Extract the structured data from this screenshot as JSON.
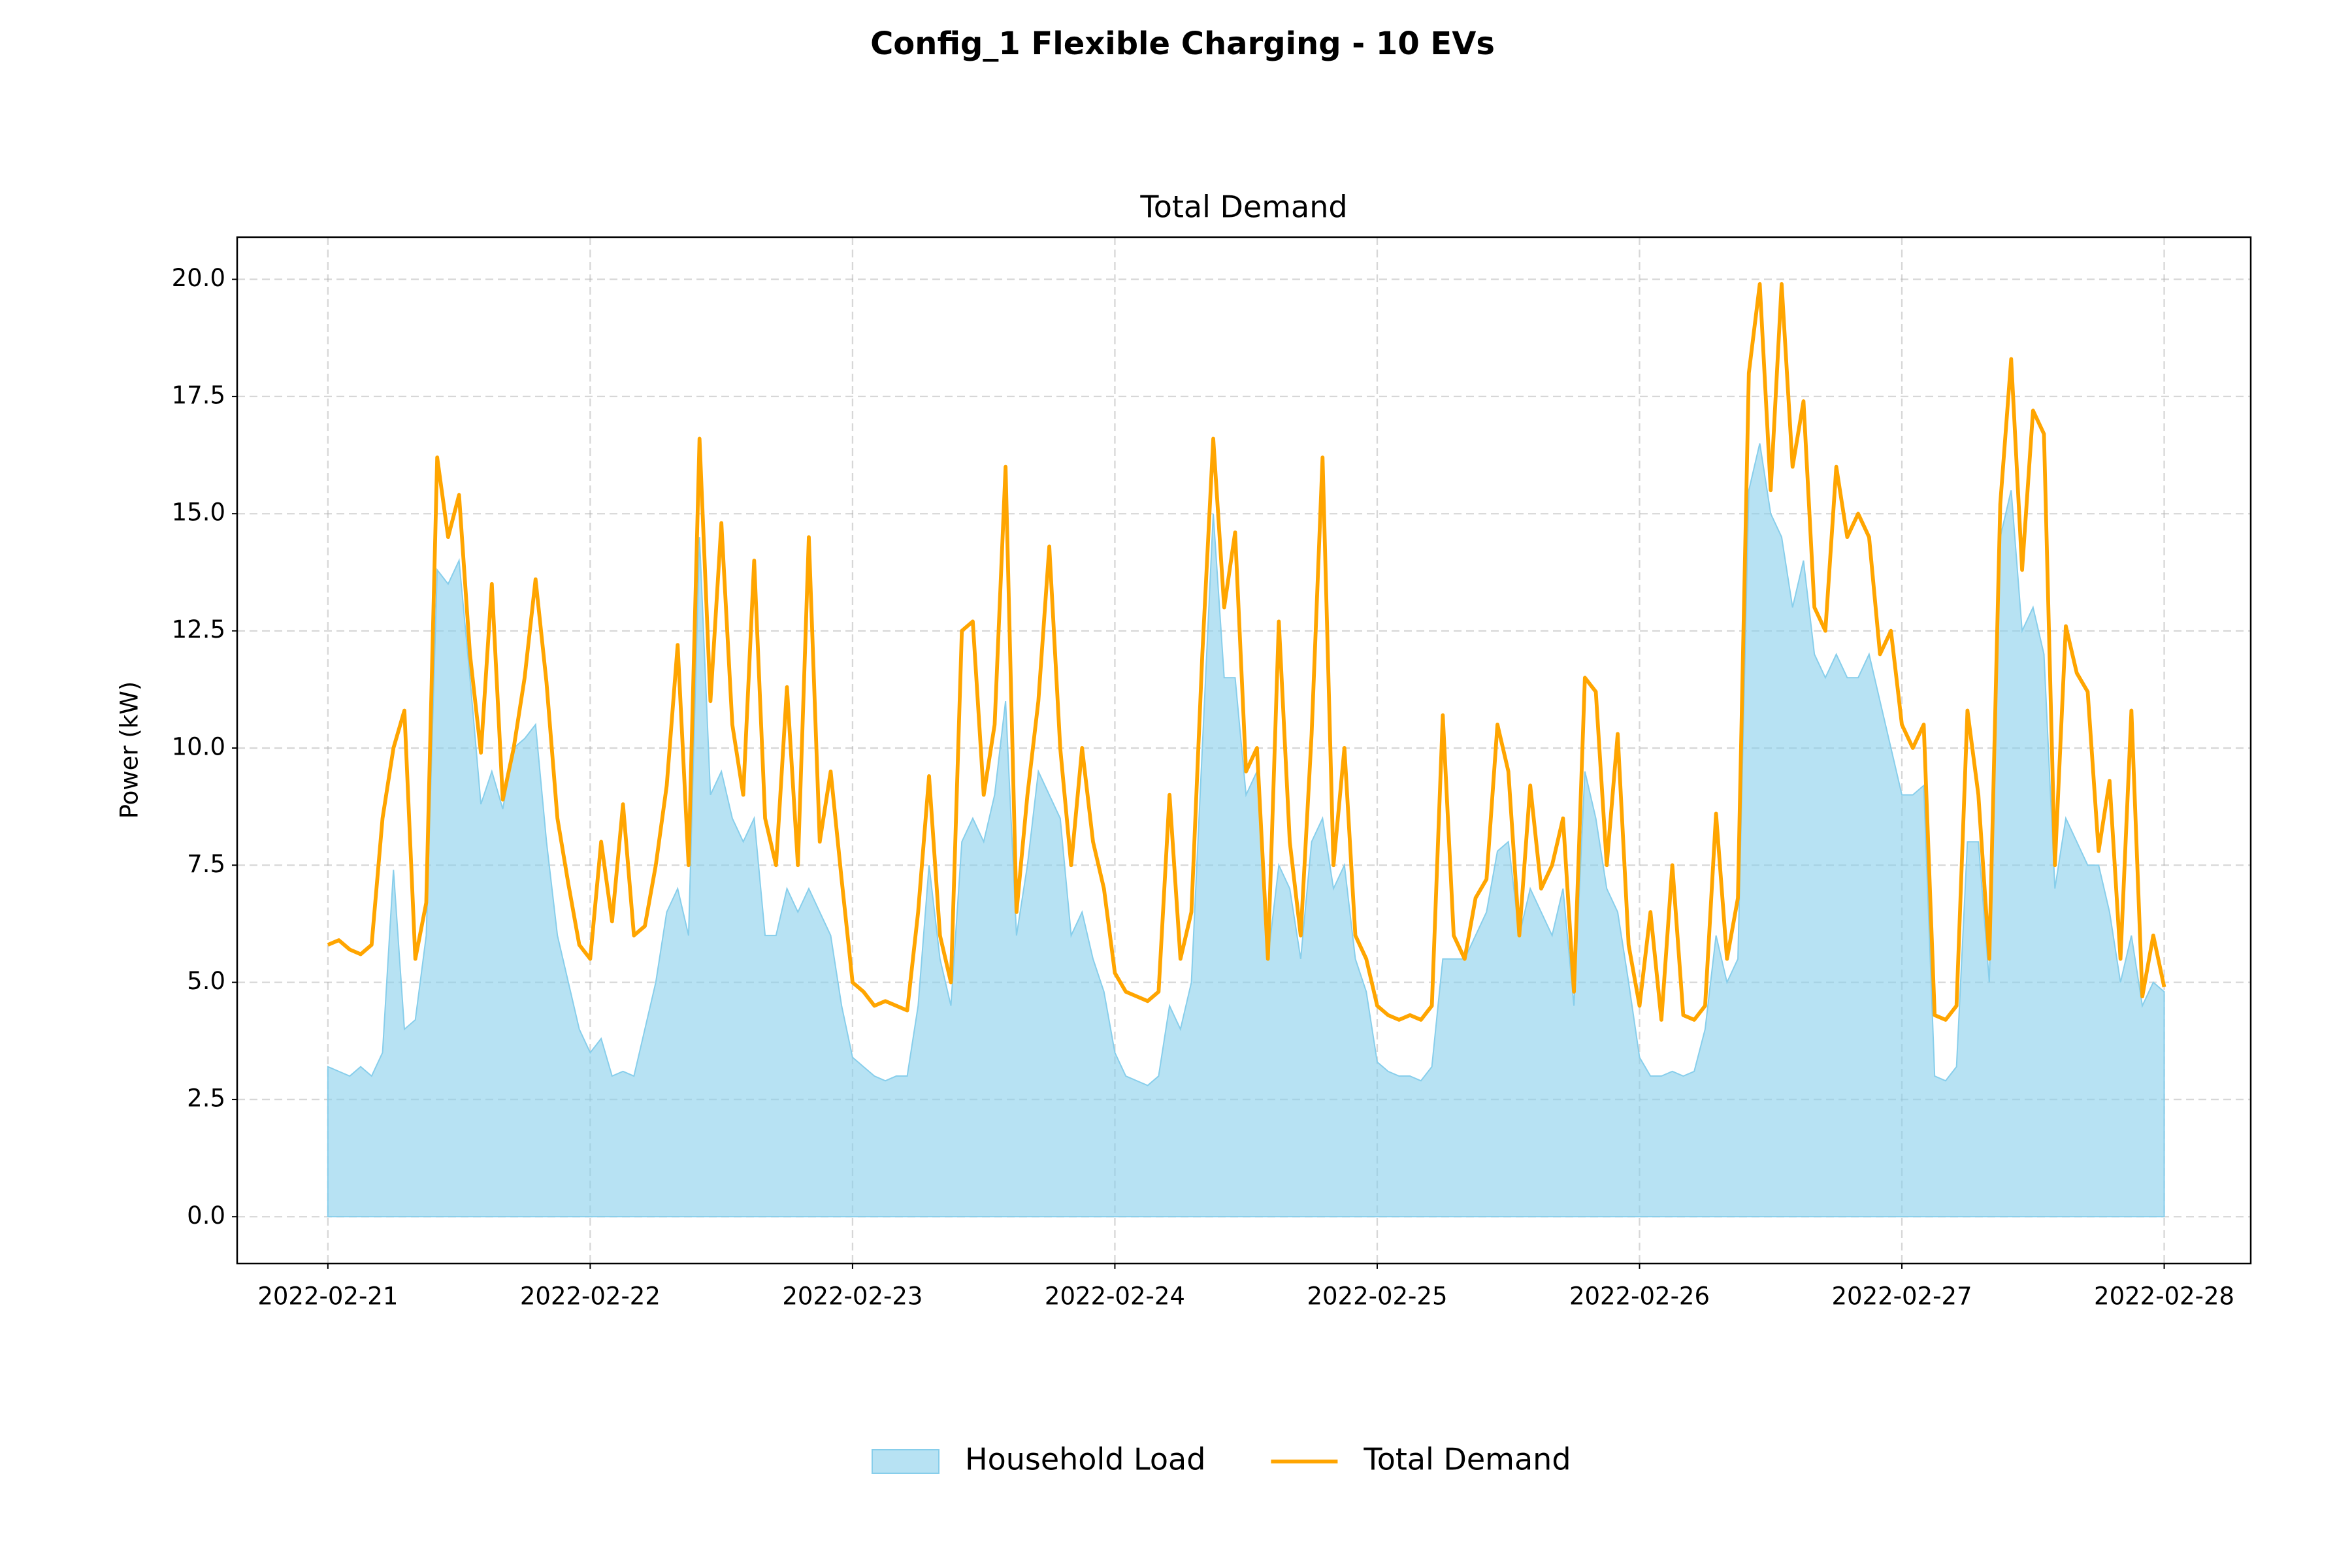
{
  "chart_data": {
    "type": "line",
    "suptitle": "Config_1 Flexible Charging - 10 EVs",
    "title": "Total Demand",
    "ylabel": "Power (kW)",
    "xlim": [
      "2022-02-20 15:42",
      "2022-02-28 07:55"
    ],
    "xticks": [
      "2022-02-21",
      "2022-02-22",
      "2022-02-23",
      "2022-02-24",
      "2022-02-25",
      "2022-02-26",
      "2022-02-27",
      "2022-02-28"
    ],
    "ylim": [
      -1.0,
      20.9
    ],
    "yticks": [
      {
        "value": 0,
        "label": "0.0"
      },
      {
        "value": 2.5,
        "label": "2.5"
      },
      {
        "value": 5,
        "label": "5.0"
      },
      {
        "value": 7.5,
        "label": "7.5"
      },
      {
        "value": 10,
        "label": "10.0"
      },
      {
        "value": 12.5,
        "label": "12.5"
      },
      {
        "value": 15,
        "label": "15.0"
      },
      {
        "value": 17.5,
        "label": "17.5"
      },
      {
        "value": 20,
        "label": "20.0"
      }
    ],
    "grid": true,
    "legend": "bottom",
    "series": [
      {
        "name": "Household Load",
        "kind": "area",
        "color": "#87ceeb",
        "values": [
          3.2,
          3.1,
          3.0,
          3.2,
          3.0,
          3.5,
          7.4,
          4.0,
          4.2,
          6.0,
          13.8,
          13.5,
          14.0,
          11.5,
          8.8,
          9.5,
          8.7,
          10.0,
          10.2,
          10.5,
          8.0,
          6.0,
          5.0,
          4.0,
          3.5,
          3.8,
          3.0,
          3.1,
          3.0,
          4.0,
          5.0,
          6.5,
          7.0,
          6.0,
          14.5,
          9.0,
          9.5,
          8.5,
          8.0,
          8.5,
          6.0,
          6.0,
          7.0,
          6.5,
          7.0,
          6.5,
          6.0,
          4.5,
          3.4,
          3.2,
          3.0,
          2.9,
          3.0,
          3.0,
          4.5,
          7.5,
          5.5,
          4.5,
          8.0,
          8.5,
          8.0,
          9.0,
          11.0,
          6.0,
          7.5,
          9.5,
          9.0,
          8.5,
          6.0,
          6.5,
          5.5,
          4.8,
          3.5,
          3.0,
          2.9,
          2.8,
          3.0,
          4.5,
          4.0,
          5.0,
          10.0,
          15.0,
          11.5,
          11.5,
          9.0,
          9.5,
          5.5,
          7.5,
          7.0,
          5.5,
          8.0,
          8.5,
          7.0,
          7.5,
          5.5,
          4.8,
          3.3,
          3.1,
          3.0,
          3.0,
          2.9,
          3.2,
          5.5,
          5.5,
          5.5,
          6.0,
          6.5,
          7.8,
          8.0,
          6.0,
          7.0,
          6.5,
          6.0,
          7.0,
          4.5,
          9.5,
          8.5,
          7.0,
          6.5,
          5.0,
          3.4,
          3.0,
          3.0,
          3.1,
          3.0,
          3.1,
          4.0,
          6.0,
          5.0,
          5.5,
          15.5,
          16.5,
          15.0,
          14.5,
          13.0,
          14.0,
          12.0,
          11.5,
          12.0,
          11.5,
          11.5,
          12.0,
          11.0,
          10.0,
          9.0,
          9.0,
          9.2,
          3.0,
          2.9,
          3.2,
          8.0,
          8.0,
          5.0,
          14.5,
          15.5,
          12.5,
          13.0,
          12.0,
          7.0,
          8.5,
          8.0,
          7.5,
          7.5,
          6.5,
          5.0,
          6.0,
          4.5,
          5.0,
          4.8
        ]
      },
      {
        "name": "Total Demand",
        "kind": "line",
        "color": "#ffa500",
        "values": [
          5.8,
          5.9,
          5.7,
          5.6,
          5.8,
          8.5,
          10.0,
          10.8,
          5.5,
          6.7,
          16.2,
          14.5,
          15.4,
          12.0,
          9.9,
          13.5,
          8.9,
          10.0,
          11.5,
          13.6,
          11.4,
          8.5,
          7.1,
          5.8,
          5.5,
          8.0,
          6.3,
          8.8,
          6.0,
          6.2,
          7.5,
          9.2,
          12.2,
          7.5,
          16.6,
          11.0,
          14.8,
          10.5,
          9.0,
          14.0,
          8.5,
          7.5,
          11.3,
          7.5,
          14.5,
          8.0,
          9.5,
          7.2,
          5.0,
          4.8,
          4.5,
          4.6,
          4.5,
          4.4,
          6.5,
          9.4,
          6.0,
          5.0,
          12.5,
          12.7,
          9.0,
          10.5,
          16.0,
          6.5,
          9.0,
          11.0,
          14.3,
          10.0,
          7.5,
          10.0,
          8.0,
          7.0,
          5.2,
          4.8,
          4.7,
          4.6,
          4.8,
          9.0,
          5.5,
          6.5,
          12.0,
          16.6,
          13.0,
          14.6,
          9.5,
          10.0,
          5.5,
          12.7,
          8.0,
          6.0,
          10.3,
          16.2,
          7.5,
          10.0,
          6.0,
          5.5,
          4.5,
          4.3,
          4.2,
          4.3,
          4.2,
          4.5,
          10.7,
          6.0,
          5.5,
          6.8,
          7.2,
          10.5,
          9.5,
          6.0,
          9.2,
          7.0,
          7.5,
          8.5,
          4.8,
          11.5,
          11.2,
          7.5,
          10.3,
          5.8,
          4.5,
          6.5,
          4.2,
          7.5,
          4.3,
          4.2,
          4.5,
          8.6,
          5.5,
          6.8,
          18.0,
          19.9,
          15.5,
          19.9,
          16.0,
          17.4,
          13.0,
          12.5,
          16.0,
          14.5,
          15.0,
          14.5,
          12.0,
          12.5,
          10.5,
          10.0,
          10.5,
          4.3,
          4.2,
          4.5,
          10.8,
          9.0,
          5.5,
          15.2,
          18.3,
          13.8,
          17.2,
          16.7,
          7.5,
          12.6,
          11.6,
          11.2,
          7.8,
          9.3,
          5.5,
          10.8,
          4.7,
          6.0,
          4.9
        ]
      }
    ]
  }
}
